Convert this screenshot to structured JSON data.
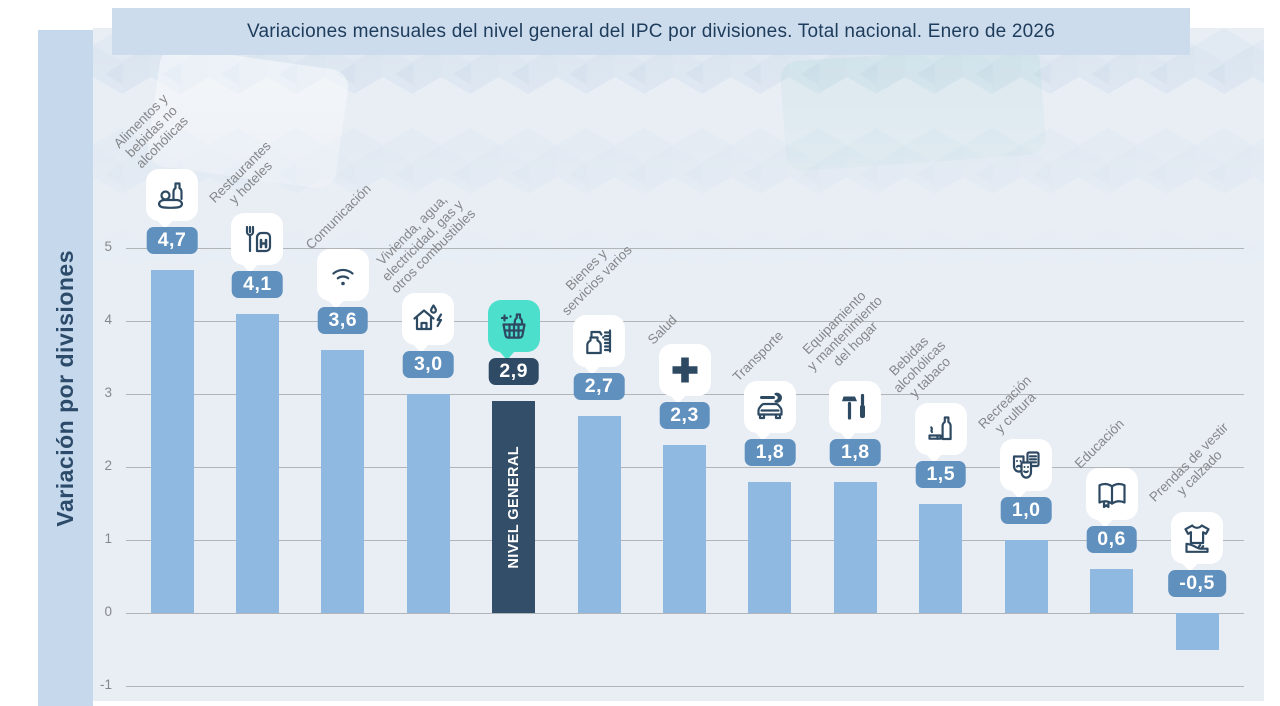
{
  "title": "Variaciones mensuales del nivel general del IPC por divisiones. Total nacional. Enero de 2026",
  "general_label": "NIVEL GENERAL",
  "chart_data": {
    "type": "bar",
    "title": "Variaciones mensuales del nivel general del IPC por divisiones. Total nacional. Enero de 2026",
    "xlabel": "",
    "ylabel": "Variación por divisiones",
    "ylim": [
      -1,
      5
    ],
    "yticks": [
      "5",
      "4",
      "3",
      "2",
      "1",
      "0",
      "-1"
    ],
    "ytick_values": [
      5,
      4,
      3,
      2,
      1,
      0,
      -1
    ],
    "grid": "horizontal",
    "legend_position": "none",
    "categories": [
      "Alimentos y bebidas no alcohólicas",
      "Restaurantes y hoteles",
      "Comunicación",
      "Vivienda, agua, electricidad, gas y otros combustibles",
      "NIVEL GENERAL",
      "Bienes y servicios varios",
      "Salud",
      "Transporte",
      "Equipamiento y mantenimiento del hogar",
      "Bebidas alcohólicas y tabaco",
      "Recreación y cultura",
      "Educación",
      "Prendas de vestir y calzado"
    ],
    "category_lines": [
      [
        "Alimentos y",
        "bebidas no",
        "alcohólicas"
      ],
      [
        "Restaurantes",
        "y hoteles"
      ],
      [
        "Comunicación"
      ],
      [
        "Vivienda, agua,",
        "electricidad, gas y",
        "otros combustibles"
      ],
      [],
      [
        "Bienes y",
        "servicios varios"
      ],
      [
        "Salud"
      ],
      [
        "Transporte"
      ],
      [
        "Equipamiento",
        "y mantenimiento",
        "del hogar"
      ],
      [
        "Bebidas",
        "alcohólicas",
        "y tabaco"
      ],
      [
        "Recreación",
        "y cultura"
      ],
      [
        "Educación"
      ],
      [
        "Prendas de vestir",
        "y calzado"
      ]
    ],
    "values": [
      4.7,
      4.1,
      3.6,
      3.0,
      2.9,
      2.7,
      2.3,
      1.8,
      1.8,
      1.5,
      1.0,
      0.6,
      -0.5
    ],
    "value_labels": [
      "4,7",
      "4,1",
      "3,6",
      "3,0",
      "2,9",
      "2,7",
      "2,3",
      "1,8",
      "1,8",
      "1,5",
      "1,0",
      "0,6",
      "-0,5"
    ],
    "icons": [
      "food-bottle-icon",
      "restaurant-hotel-icon",
      "wifi-icon",
      "house-energy-icon",
      "shopping-basket-icon",
      "toiletries-comb-icon",
      "health-cross-icon",
      "car-wrench-icon",
      "tools-icon",
      "bottle-cigarette-icon",
      "theater-masks-icon",
      "open-book-icon",
      "tshirt-shoe-icon"
    ],
    "highlight_index": 4,
    "colors": {
      "bar": "#8fb9e1",
      "bar_highlight": "#334e68",
      "badge": "#6090bd",
      "badge_highlight": "#2f4a64",
      "icon_bg": "#ffffff",
      "icon_bg_highlight": "#4ce0cc",
      "icon_stroke": "#2e4a63",
      "gridline": "#a7aaad",
      "title_bar_bg": "#ccdcec",
      "title_text": "#1e3c5b",
      "panel_bg": "#c6d9ec",
      "chart_bg": "#e9eef5",
      "label_text": "#85878a",
      "badge_text": "#ffffff"
    }
  }
}
